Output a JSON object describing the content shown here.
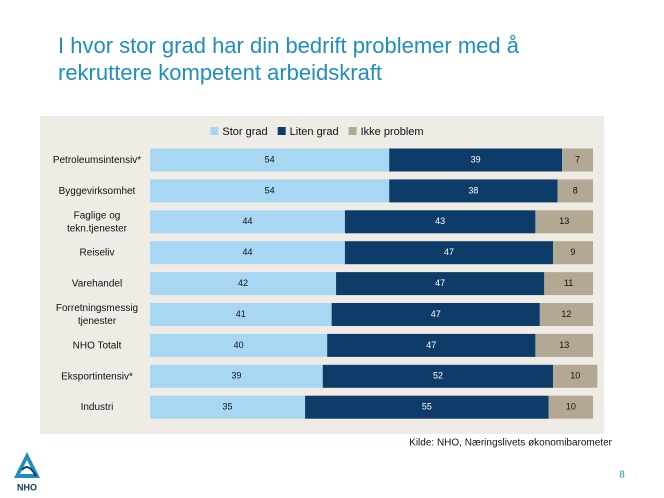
{
  "chart_data": {
    "type": "bar",
    "orientation": "horizontal",
    "stacked": true,
    "title": "I hvor stor grad har din bedrift problemer med å rekruttere kompetent arbeidskraft",
    "categories": [
      "Petroleumsintensiv*",
      "Byggevirksomhet",
      "Faglige og tekn.tjenester",
      "Reiseliv",
      "Varehandel",
      "Forretningsmessig tjenester",
      "NHO Totalt",
      "Eksportintensiv*",
      "Industri"
    ],
    "series": [
      {
        "name": "Stor grad",
        "color": "#a8d7f4",
        "values": [
          54,
          54,
          44,
          44,
          42,
          41,
          40,
          39,
          35
        ]
      },
      {
        "name": "Liten  grad",
        "color": "#0e3c68",
        "values": [
          39,
          38,
          43,
          47,
          47,
          47,
          47,
          52,
          55
        ]
      },
      {
        "name": "Ikke problem",
        "color": "#b3a893",
        "values": [
          7,
          8,
          13,
          9,
          11,
          12,
          13,
          10,
          10
        ]
      }
    ],
    "xlim": [
      0,
      100
    ],
    "legend": "top",
    "source": "Kilde: NHO, Næringslivets økonomibarometer"
  },
  "slide": {
    "page_number": "8",
    "logo": "NHO"
  }
}
